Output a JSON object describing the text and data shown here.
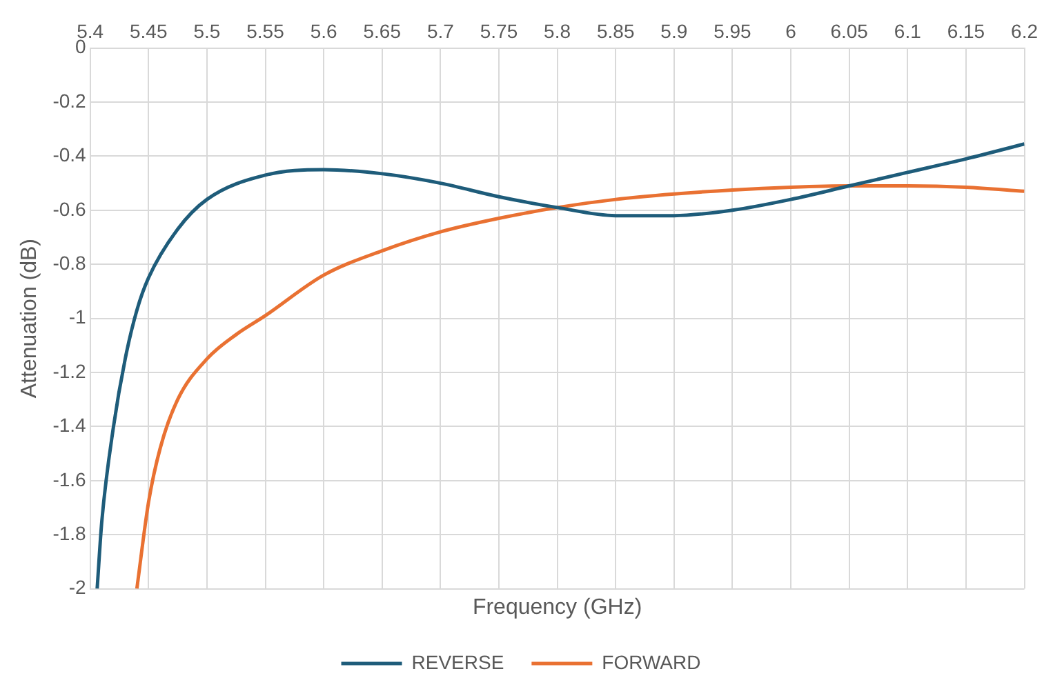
{
  "chart_data": {
    "type": "line",
    "xlabel": "Frequency (GHz)",
    "ylabel": "Attenuation (dB)",
    "xlim": [
      5.4,
      6.2
    ],
    "xticks": [
      5.4,
      5.45,
      5.5,
      5.55,
      5.6,
      5.65,
      5.7,
      5.75,
      5.8,
      5.85,
      5.9,
      5.95,
      6,
      6.05,
      6.1,
      6.15,
      6.2
    ],
    "ylim": [
      -2,
      0
    ],
    "yticks": [
      0,
      -0.2,
      -0.4,
      -0.6,
      -0.8,
      -1,
      -1.2,
      -1.4,
      -1.6,
      -1.8,
      -2
    ],
    "grid": true,
    "legend": "bottom",
    "marker": "none",
    "line_style": "solid",
    "series": [
      {
        "name": "REVERSE",
        "color": "#1e5c7a",
        "x": [
          5.406,
          5.41,
          5.42,
          5.43,
          5.44,
          5.45,
          5.475,
          5.5,
          5.55,
          5.6,
          5.65,
          5.7,
          5.75,
          5.8,
          5.85,
          5.9,
          5.95,
          6.0,
          6.05,
          6.1,
          6.15,
          6.2
        ],
        "values": [
          -2,
          -1.75,
          -1.4,
          -1.15,
          -0.97,
          -0.85,
          -0.67,
          -0.56,
          -0.47,
          -0.45,
          -0.465,
          -0.5,
          -0.55,
          -0.59,
          -0.62,
          -0.62,
          -0.6,
          -0.56,
          -0.51,
          -0.46,
          -0.41,
          -0.355
        ]
      },
      {
        "name": "FORWARD",
        "color": "#e97132",
        "x": [
          5.44,
          5.45,
          5.46,
          5.475,
          5.5,
          5.525,
          5.55,
          5.6,
          5.65,
          5.7,
          5.75,
          5.8,
          5.85,
          5.9,
          5.95,
          6.0,
          6.05,
          6.1,
          6.15,
          6.2
        ],
        "values": [
          -2,
          -1.68,
          -1.48,
          -1.3,
          -1.15,
          -1.06,
          -0.99,
          -0.84,
          -0.75,
          -0.68,
          -0.63,
          -0.59,
          -0.56,
          -0.54,
          -0.525,
          -0.515,
          -0.51,
          -0.51,
          -0.515,
          -0.53
        ]
      }
    ]
  }
}
